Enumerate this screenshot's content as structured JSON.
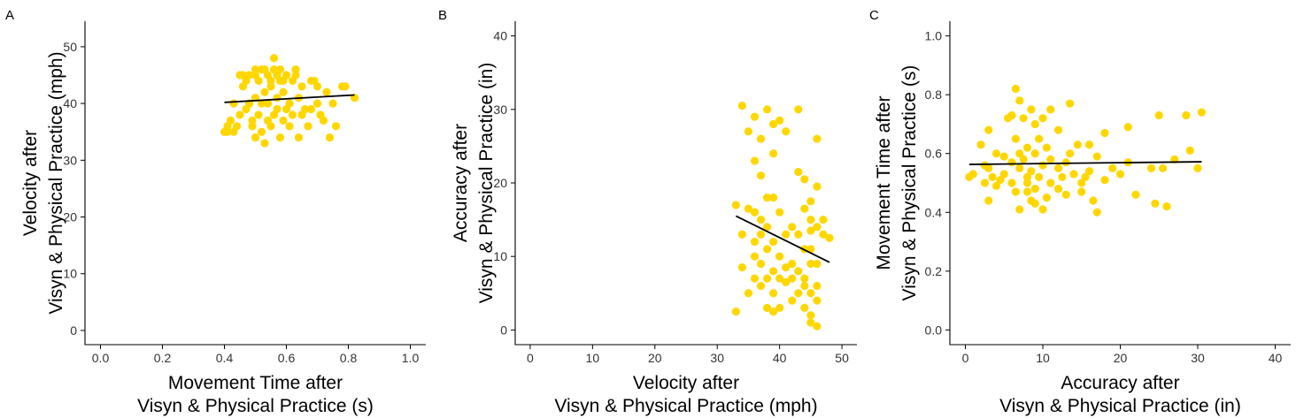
{
  "colors": {
    "point": "#FFD700",
    "fit_line": "#000000",
    "axis": "#000000",
    "tick_text": "#333333"
  },
  "chart_data": [
    {
      "type": "scatter",
      "panel_label": "A",
      "xlabel_lines": [
        "Movement Time after",
        "Visyn & Physical Practice (s)"
      ],
      "ylabel_lines": [
        "Velocity after",
        "Visyn & Physical Practice (mph)"
      ],
      "xlim": [
        -0.05,
        1.05
      ],
      "ylim": [
        -2.5,
        54.5
      ],
      "xticks": [
        0.0,
        0.2,
        0.4,
        0.6,
        0.8,
        1.0
      ],
      "xtick_labels": [
        "0.0",
        "0.2",
        "0.4",
        "0.6",
        "0.8",
        "1.0"
      ],
      "yticks": [
        0,
        10,
        20,
        30,
        40,
        50
      ],
      "ytick_labels": [
        "0",
        "10",
        "20",
        "30",
        "40",
        "50"
      ],
      "grid": false,
      "points": [
        [
          0.4,
          35
        ],
        [
          0.41,
          36
        ],
        [
          0.42,
          37
        ],
        [
          0.43,
          35
        ],
        [
          0.44,
          36
        ],
        [
          0.45,
          38
        ],
        [
          0.45,
          45
        ],
        [
          0.46,
          43
        ],
        [
          0.47,
          39
        ],
        [
          0.47,
          44
        ],
        [
          0.48,
          45
        ],
        [
          0.48,
          40
        ],
        [
          0.49,
          36
        ],
        [
          0.49,
          37
        ],
        [
          0.5,
          34
        ],
        [
          0.5,
          45
        ],
        [
          0.5,
          46
        ],
        [
          0.51,
          44
        ],
        [
          0.51,
          38
        ],
        [
          0.52,
          35
        ],
        [
          0.52,
          46
        ],
        [
          0.52,
          40
        ],
        [
          0.53,
          33
        ],
        [
          0.53,
          42
        ],
        [
          0.53,
          46
        ],
        [
          0.54,
          45
        ],
        [
          0.54,
          37
        ],
        [
          0.55,
          44
        ],
        [
          0.55,
          36
        ],
        [
          0.55,
          43
        ],
        [
          0.56,
          48
        ],
        [
          0.56,
          46
        ],
        [
          0.56,
          38
        ],
        [
          0.57,
          45
        ],
        [
          0.57,
          41
        ],
        [
          0.57,
          39
        ],
        [
          0.58,
          46
        ],
        [
          0.58,
          44
        ],
        [
          0.58,
          34
        ],
        [
          0.59,
          42
        ],
        [
          0.59,
          37
        ],
        [
          0.6,
          45
        ],
        [
          0.6,
          39
        ],
        [
          0.61,
          40
        ],
        [
          0.61,
          36
        ],
        [
          0.62,
          44
        ],
        [
          0.62,
          38
        ],
        [
          0.63,
          45
        ],
        [
          0.63,
          46
        ],
        [
          0.64,
          34
        ],
        [
          0.64,
          41
        ],
        [
          0.65,
          43
        ],
        [
          0.66,
          39
        ],
        [
          0.67,
          36
        ],
        [
          0.68,
          39
        ],
        [
          0.69,
          44
        ],
        [
          0.7,
          40
        ],
        [
          0.7,
          43
        ],
        [
          0.71,
          38
        ],
        [
          0.72,
          37
        ],
        [
          0.73,
          42
        ],
        [
          0.74,
          34
        ],
        [
          0.75,
          40
        ],
        [
          0.76,
          36
        ],
        [
          0.78,
          43
        ],
        [
          0.79,
          43
        ],
        [
          0.82,
          41
        ],
        [
          0.41,
          35
        ],
        [
          0.43,
          40
        ],
        [
          0.46,
          45
        ],
        [
          0.5,
          41
        ],
        [
          0.54,
          40
        ],
        [
          0.59,
          44
        ],
        [
          0.65,
          38
        ],
        [
          0.68,
          44
        ]
      ],
      "fit_line": [
        [
          0.4,
          40.2
        ],
        [
          0.82,
          41.5
        ]
      ]
    },
    {
      "type": "scatter",
      "panel_label": "B",
      "xlabel_lines": [
        "Velocity after",
        "Visyn & Physical Practice (mph)"
      ],
      "ylabel_lines": [
        "Accuracy after",
        "Visyn & Physical Practice (in)"
      ],
      "xlim": [
        -2.4,
        52.4
      ],
      "ylim": [
        -2,
        42
      ],
      "xticks": [
        0,
        10,
        20,
        30,
        40,
        50
      ],
      "xtick_labels": [
        "0",
        "10",
        "20",
        "30",
        "40",
        "50"
      ],
      "yticks": [
        0,
        10,
        20,
        30,
        40
      ],
      "ytick_labels": [
        "0",
        "10",
        "20",
        "30",
        "40"
      ],
      "grid": false,
      "points": [
        [
          33,
          2.5
        ],
        [
          33,
          17
        ],
        [
          34,
          30.5
        ],
        [
          34,
          13
        ],
        [
          34,
          8.5
        ],
        [
          35,
          27
        ],
        [
          35,
          16.5
        ],
        [
          35,
          5
        ],
        [
          36,
          29
        ],
        [
          36,
          23
        ],
        [
          36,
          16
        ],
        [
          36,
          12
        ],
        [
          36,
          10
        ],
        [
          36,
          7
        ],
        [
          37,
          26
        ],
        [
          37,
          21
        ],
        [
          37,
          15
        ],
        [
          37,
          13
        ],
        [
          37,
          9
        ],
        [
          37,
          6
        ],
        [
          38,
          30
        ],
        [
          38,
          18
        ],
        [
          38,
          14
        ],
        [
          38,
          11
        ],
        [
          38,
          7
        ],
        [
          38,
          3
        ],
        [
          39,
          28
        ],
        [
          39,
          24
        ],
        [
          39,
          18
        ],
        [
          39,
          12
        ],
        [
          39,
          8
        ],
        [
          39,
          5
        ],
        [
          39,
          2.5
        ],
        [
          40,
          28.5
        ],
        [
          40,
          16
        ],
        [
          40,
          10
        ],
        [
          40,
          7
        ],
        [
          40,
          3
        ],
        [
          41,
          27
        ],
        [
          41,
          13
        ],
        [
          41,
          8.5
        ],
        [
          41,
          6.5
        ],
        [
          42,
          14
        ],
        [
          42,
          9
        ],
        [
          42,
          7
        ],
        [
          42,
          4
        ],
        [
          43,
          30
        ],
        [
          43,
          21.5
        ],
        [
          43,
          13
        ],
        [
          43,
          8
        ],
        [
          43,
          5
        ],
        [
          44,
          20.5
        ],
        [
          44,
          16.5
        ],
        [
          44,
          11
        ],
        [
          44,
          7
        ],
        [
          44,
          3
        ],
        [
          45,
          17.5
        ],
        [
          45,
          15
        ],
        [
          45,
          11
        ],
        [
          45,
          9
        ],
        [
          45,
          5
        ],
        [
          45,
          2
        ],
        [
          45,
          1
        ],
        [
          46,
          26
        ],
        [
          46,
          19.5
        ],
        [
          46,
          14
        ],
        [
          46,
          9
        ],
        [
          46,
          6
        ],
        [
          46,
          4
        ],
        [
          47,
          15
        ],
        [
          47,
          13
        ],
        [
          48,
          12.5
        ],
        [
          45,
          13.5
        ],
        [
          44,
          6
        ],
        [
          46,
          0.5
        ]
      ],
      "fit_line": [
        [
          33,
          15.5
        ],
        [
          48,
          9.2
        ]
      ]
    },
    {
      "type": "scatter",
      "panel_label": "C",
      "xlabel_lines": [
        "Accuracy after",
        "Visyn & Physical Practice (in)"
      ],
      "ylabel_lines": [
        "Movement Time after",
        "Visyn & Physical Practice (s)"
      ],
      "xlim": [
        -2,
        42
      ],
      "ylim": [
        -0.05,
        1.05
      ],
      "xticks": [
        0,
        10,
        20,
        30,
        40
      ],
      "xtick_labels": [
        "0",
        "10",
        "20",
        "30",
        "40"
      ],
      "yticks": [
        0.0,
        0.2,
        0.4,
        0.6,
        0.8,
        1.0
      ],
      "ytick_labels": [
        "0.0",
        "0.2",
        "0.4",
        "0.6",
        "0.8",
        "1.0"
      ],
      "grid": false,
      "points": [
        [
          0.5,
          0.52
        ],
        [
          1,
          0.53
        ],
        [
          2,
          0.63
        ],
        [
          2.5,
          0.56
        ],
        [
          2.5,
          0.5
        ],
        [
          3,
          0.68
        ],
        [
          3,
          0.55
        ],
        [
          3,
          0.44
        ],
        [
          3.5,
          0.52
        ],
        [
          4,
          0.6
        ],
        [
          4,
          0.49
        ],
        [
          5,
          0.59
        ],
        [
          5,
          0.53
        ],
        [
          5.5,
          0.72
        ],
        [
          6,
          0.73
        ],
        [
          6,
          0.57
        ],
        [
          6,
          0.5
        ],
        [
          6.5,
          0.82
        ],
        [
          6.5,
          0.65
        ],
        [
          6.5,
          0.47
        ],
        [
          7,
          0.78
        ],
        [
          7,
          0.6
        ],
        [
          7,
          0.55
        ],
        [
          7,
          0.41
        ],
        [
          7.5,
          0.72
        ],
        [
          7.5,
          0.58
        ],
        [
          8,
          0.62
        ],
        [
          8,
          0.52
        ],
        [
          8,
          0.47
        ],
        [
          8.5,
          0.75
        ],
        [
          8.5,
          0.54
        ],
        [
          8.5,
          0.44
        ],
        [
          9,
          0.7
        ],
        [
          9,
          0.6
        ],
        [
          9,
          0.48
        ],
        [
          9,
          0.43
        ],
        [
          9.5,
          0.65
        ],
        [
          9.5,
          0.52
        ],
        [
          10,
          0.72
        ],
        [
          10,
          0.56
        ],
        [
          10,
          0.41
        ],
        [
          10.5,
          0.62
        ],
        [
          10.5,
          0.45
        ],
        [
          11,
          0.75
        ],
        [
          11,
          0.58
        ],
        [
          11,
          0.5
        ],
        [
          12,
          0.68
        ],
        [
          12,
          0.55
        ],
        [
          12,
          0.48
        ],
        [
          12.5,
          0.52
        ],
        [
          13,
          0.57
        ],
        [
          13,
          0.46
        ],
        [
          13.5,
          0.77
        ],
        [
          13.5,
          0.6
        ],
        [
          14,
          0.53
        ],
        [
          14.5,
          0.63
        ],
        [
          15,
          0.5
        ],
        [
          15,
          0.47
        ],
        [
          16,
          0.63
        ],
        [
          16,
          0.54
        ],
        [
          16.5,
          0.44
        ],
        [
          17,
          0.59
        ],
        [
          17,
          0.4
        ],
        [
          18,
          0.67
        ],
        [
          18,
          0.51
        ],
        [
          19,
          0.55
        ],
        [
          20,
          0.53
        ],
        [
          21,
          0.69
        ],
        [
          21,
          0.57
        ],
        [
          22,
          0.46
        ],
        [
          24,
          0.55
        ],
        [
          24.5,
          0.43
        ],
        [
          25,
          0.73
        ],
        [
          25.5,
          0.55
        ],
        [
          26,
          0.42
        ],
        [
          27,
          0.58
        ],
        [
          28.5,
          0.73
        ],
        [
          29,
          0.61
        ],
        [
          30,
          0.55
        ],
        [
          30.5,
          0.74
        ],
        [
          15.5,
          0.52
        ],
        [
          8,
          0.5
        ],
        [
          4.5,
          0.51
        ]
      ],
      "fit_line": [
        [
          0.5,
          0.563
        ],
        [
          30.5,
          0.572
        ]
      ]
    }
  ]
}
